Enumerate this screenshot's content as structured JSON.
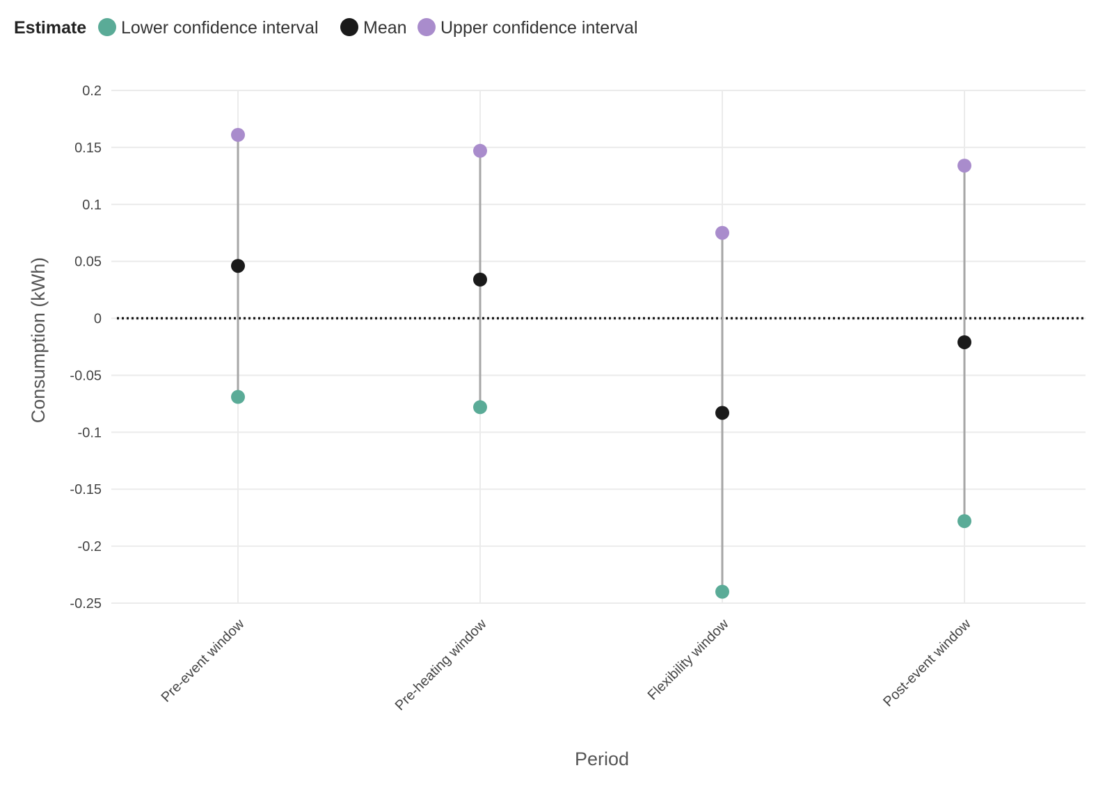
{
  "chart_data": {
    "type": "scatter",
    "xlabel": "Period",
    "ylabel": "Consumption (kWh)",
    "categories": [
      "Pre-event window",
      "Pre-heating window",
      "Flexibility window",
      "Post-event window"
    ],
    "ylim": [
      -0.25,
      0.2
    ],
    "yticks": [
      0.2,
      0.15,
      0.1,
      0.05,
      0,
      -0.05,
      -0.1,
      -0.15,
      -0.2,
      -0.25
    ],
    "ytick_labels": [
      "0.2",
      "0.15",
      "0.1",
      "0.05",
      "0",
      "-0.05",
      "-0.1",
      "-0.15",
      "-0.2",
      "-0.25"
    ],
    "grid": true,
    "reference_line": {
      "y": 0,
      "style": "dotted"
    },
    "legend": {
      "title": "Estimate",
      "position": "top-left",
      "entries": [
        "Lower confidence interval",
        "Mean",
        "Upper confidence interval"
      ]
    },
    "series": [
      {
        "name": "Lower confidence interval",
        "color": "#5aab97",
        "values": [
          -0.069,
          -0.078,
          -0.24,
          -0.178
        ]
      },
      {
        "name": "Mean",
        "color": "#1a1a1a",
        "values": [
          0.046,
          0.034,
          -0.083,
          -0.021
        ]
      },
      {
        "name": "Upper confidence interval",
        "color": "#a98ccc",
        "values": [
          0.161,
          0.147,
          0.075,
          0.134
        ]
      }
    ]
  }
}
